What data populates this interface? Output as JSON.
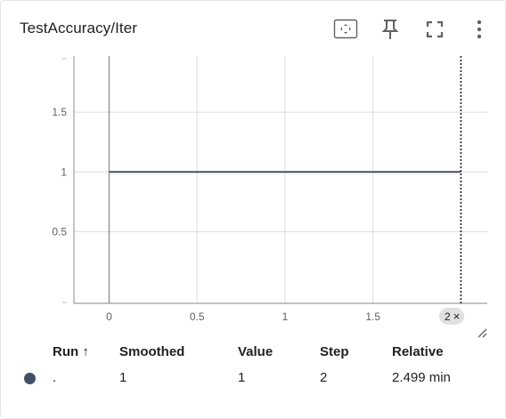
{
  "header": {
    "title": "TestAccuracy/Iter",
    "icons": [
      "fit-domain-icon",
      "pin-icon",
      "fullscreen-icon",
      "more-vert-icon"
    ]
  },
  "chart_data": {
    "type": "line",
    "title": "TestAccuracy/Iter",
    "xlabel": "",
    "ylabel": "",
    "xlim": [
      -0.2,
      2.15
    ],
    "ylim": [
      -0.1,
      1.97
    ],
    "x_ticks": [
      0,
      0.5,
      1,
      1.5
    ],
    "x_tick_labels": [
      "0",
      "0.5",
      "1",
      "1.5"
    ],
    "y_ticks": [
      0.5,
      1,
      1.5
    ],
    "y_tick_labels": [
      "0.5",
      "1",
      "1.5"
    ],
    "grid": true,
    "series": [
      {
        "color": "#425066",
        "x": [
          0,
          2
        ],
        "y": [
          1,
          1
        ]
      }
    ],
    "hover_step": 2
  },
  "step_badge": {
    "label": "2",
    "close_glyph": "×"
  },
  "table": {
    "columns": {
      "run": "Run ↑",
      "smoothed": "Smoothed",
      "value": "Value",
      "step": "Step",
      "relative": "Relative"
    },
    "rows": [
      {
        "color": "#425066",
        "run": ".",
        "smoothed": "1",
        "value": "1",
        "step": "2",
        "relative": "2.499 min"
      }
    ]
  }
}
